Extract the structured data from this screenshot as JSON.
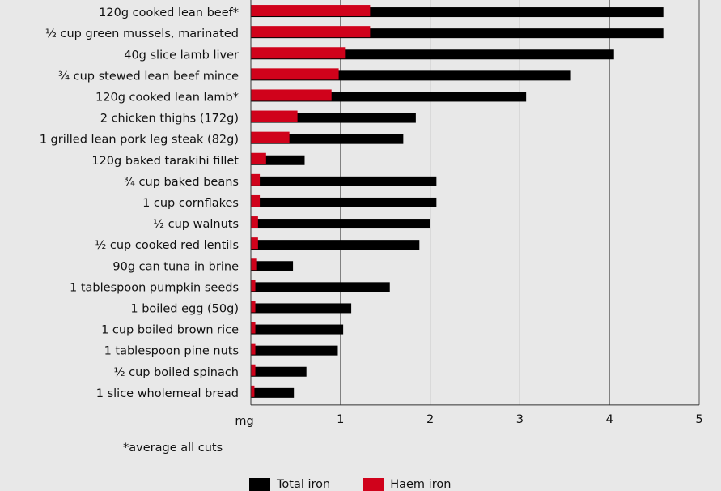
{
  "chart_data": {
    "type": "bar",
    "orientation": "horizontal",
    "categories": [
      "120g cooked lean beef*",
      "½ cup green mussels, marinated",
      "40g slice lamb liver",
      "¾ cup stewed lean beef mince",
      "120g cooked lean lamb*",
      "2 chicken thighs (172g)",
      "1 grilled lean pork leg steak (82g)",
      "120g baked tarakihi fillet",
      "¾ cup baked beans",
      "1 cup cornflakes",
      "½ cup walnuts",
      "½ cup cooked red lentils",
      "90g can tuna in brine",
      "1 tablespoon pumpkin seeds",
      "1 boiled egg (50g)",
      "1 cup boiled brown rice",
      "1 tablespoon pine nuts",
      "½ cup boiled spinach",
      "1 slice wholemeal bread"
    ],
    "series": [
      {
        "name": "Total iron",
        "color": "#000000",
        "values": [
          4.6,
          4.6,
          4.05,
          3.57,
          3.07,
          1.84,
          1.7,
          0.6,
          2.07,
          2.07,
          2.0,
          1.88,
          0.47,
          1.55,
          1.12,
          1.03,
          0.97,
          0.62,
          0.48
        ]
      },
      {
        "name": "Haem iron",
        "color": "#d0021b",
        "values": [
          1.33,
          1.33,
          1.05,
          0.98,
          0.9,
          0.52,
          0.43,
          0.17,
          0.1,
          0.1,
          0.08,
          0.08,
          0.06,
          0.05,
          0.05,
          0.05,
          0.05,
          0.05,
          0.04
        ]
      }
    ],
    "xlabel": "mg",
    "xlim": [
      0,
      5
    ],
    "xticks": [
      1,
      2,
      3,
      4,
      5
    ],
    "grid": "vertical",
    "legend_position": "bottom",
    "note": "*average all cuts"
  }
}
